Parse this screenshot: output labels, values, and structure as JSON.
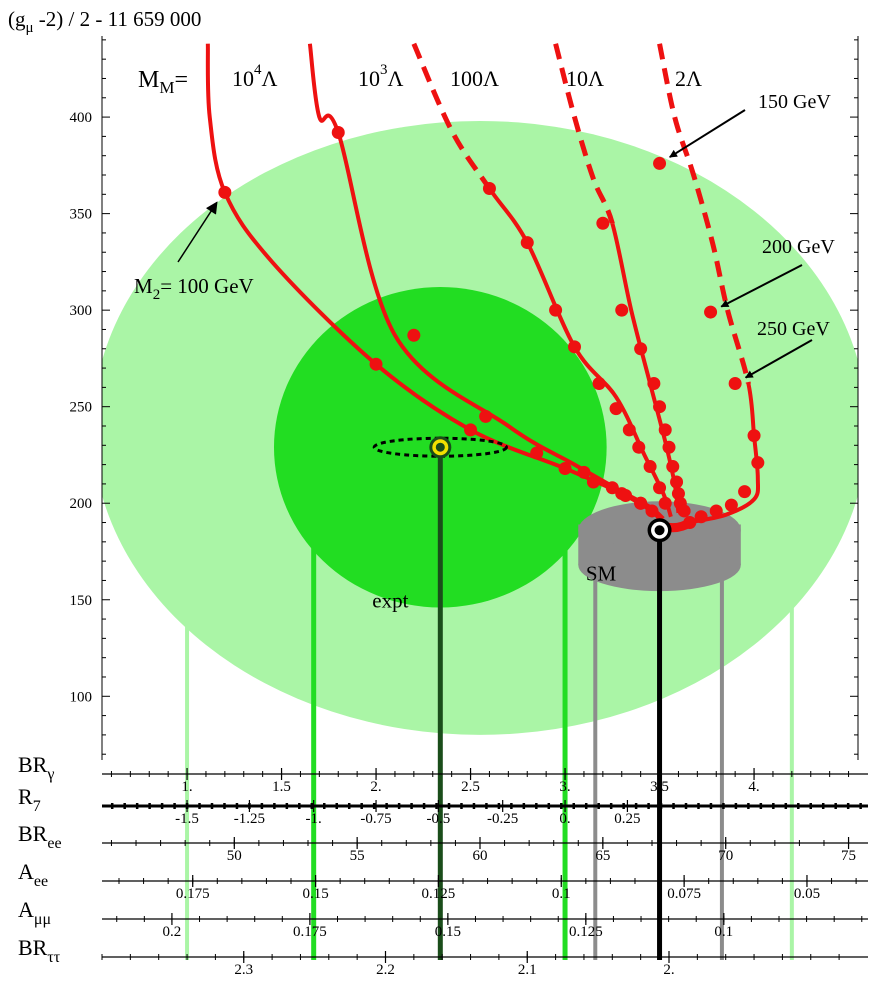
{
  "colors": {
    "outer_region": "#aaf5a6",
    "inner_region": "#22dd22",
    "sm_disc": "#8c8c8c",
    "curves": "#ee1111",
    "sm_line": "#000000",
    "expt_line": "#1a4d1a"
  },
  "chart_data": {
    "type": "line",
    "title": "(gμ -2) / 2  - 11 659 000",
    "title_parts": {
      "base": "(g",
      "sub": "μ",
      "rest": " -2) / 2  - 11 659 000"
    },
    "ylabel": "",
    "y_ticks": [
      100,
      150,
      200,
      250,
      300,
      350,
      400
    ],
    "y_tick_labels": [
      "100",
      "150",
      "200",
      "250",
      "300",
      "350",
      "400"
    ],
    "xlim": [
      0.55,
      4.55
    ],
    "ylim": [
      67,
      442
    ],
    "grid": false,
    "header_label": {
      "base": "M",
      "sub": "M",
      "rest": "= "
    },
    "series": [
      {
        "name": "10⁴Λ",
        "label_base": "10",
        "label_sup": "4",
        "label_rest": "Λ",
        "dashed": false,
        "x": [
          1.11,
          1.12,
          1.2,
          1.45,
          2.0,
          2.5,
          3.0,
          3.3,
          3.47,
          3.5
        ],
        "y": [
          438,
          400,
          361,
          325,
          272,
          238,
          218,
          205,
          195,
          190
        ],
        "markers": [
          [
            1.2,
            361
          ],
          [
            2.0,
            272
          ],
          [
            2.5,
            238
          ],
          [
            3.0,
            218
          ],
          [
            3.15,
            211
          ],
          [
            3.3,
            205
          ],
          [
            3.4,
            200
          ]
        ]
      },
      {
        "name": "10³Λ",
        "label_base": "10",
        "label_sup": "3",
        "label_rest": "Λ",
        "dashed": false,
        "x": [
          1.65,
          1.7,
          1.8,
          2.1,
          2.7,
          3.05,
          3.3,
          3.45,
          3.52
        ],
        "y": [
          438,
          400,
          392,
          287,
          240,
          220,
          206,
          198,
          192
        ],
        "markers": [
          [
            1.8,
            392
          ],
          [
            2.2,
            287
          ],
          [
            2.58,
            245
          ],
          [
            2.85,
            226
          ],
          [
            3.1,
            216
          ],
          [
            3.25,
            208
          ],
          [
            3.32,
            204
          ],
          [
            3.4,
            200
          ],
          [
            3.46,
            196
          ]
        ]
      },
      {
        "name": "100Λ",
        "label_base": "100Λ",
        "label_sup": "",
        "label_rest": "",
        "dashed_above": 363,
        "x": [
          2.2,
          2.4,
          2.6,
          2.8,
          3.05,
          3.27,
          3.42,
          3.52,
          3.56
        ],
        "y": [
          438,
          393,
          363,
          335,
          281,
          255,
          225,
          205,
          193
        ],
        "markers": [
          [
            2.6,
            363
          ],
          [
            2.8,
            335
          ],
          [
            2.95,
            300
          ],
          [
            3.05,
            281
          ],
          [
            3.18,
            262
          ],
          [
            3.27,
            249
          ],
          [
            3.34,
            238
          ],
          [
            3.39,
            229
          ],
          [
            3.45,
            219
          ],
          [
            3.5,
            208
          ],
          [
            3.53,
            200
          ]
        ]
      },
      {
        "name": "10Λ",
        "label_base": "10Λ",
        "label_sup": "",
        "label_rest": "",
        "dashed_above": 345,
        "x": [
          2.95,
          3.05,
          3.15,
          3.25,
          3.35,
          3.45,
          3.53,
          3.58,
          3.6
        ],
        "y": [
          438,
          400,
          368,
          345,
          300,
          262,
          232,
          210,
          195
        ],
        "markers": [
          [
            3.2,
            345
          ],
          [
            3.3,
            300
          ],
          [
            3.4,
            280
          ],
          [
            3.47,
            262
          ],
          [
            3.5,
            250
          ],
          [
            3.53,
            238
          ],
          [
            3.55,
            229
          ],
          [
            3.57,
            219
          ],
          [
            3.59,
            211
          ],
          [
            3.6,
            205
          ],
          [
            3.61,
            200
          ],
          [
            3.63,
            196
          ]
        ]
      },
      {
        "name": "2Λ",
        "label_base": "2Λ",
        "label_sup": "",
        "label_rest": "",
        "dashed_above": 262,
        "x": [
          3.5,
          3.58,
          3.68,
          3.78,
          3.86,
          3.97,
          4.0,
          4.02,
          4.0,
          3.85,
          3.65
        ],
        "y": [
          438,
          400,
          370,
          335,
          300,
          262,
          235,
          213,
          202,
          194,
          190
        ],
        "markers": [
          [
            3.5,
            376
          ],
          [
            3.77,
            299
          ],
          [
            3.9,
            262
          ],
          [
            4.0,
            235
          ],
          [
            4.02,
            221
          ],
          [
            3.95,
            206
          ],
          [
            3.88,
            199
          ],
          [
            3.8,
            196
          ],
          [
            3.72,
            193
          ],
          [
            3.66,
            190
          ]
        ]
      }
    ],
    "annotations": [
      {
        "label": "M",
        "label_sub": "2",
        "label_rest": "= 100 GeV",
        "target": [
          1.2,
          361
        ]
      },
      {
        "label": "150 GeV",
        "target": [
          3.5,
          376
        ]
      },
      {
        "label": "200 GeV",
        "target": [
          3.77,
          299
        ]
      },
      {
        "label": "250 GeV",
        "target": [
          3.9,
          262
        ]
      }
    ],
    "regions": [
      {
        "label": "",
        "kind": "outer",
        "cx": 2.55,
        "cy": 239,
        "rx": 2.05,
        "ry": 159
      },
      {
        "label": "expt",
        "kind": "inner",
        "cx": 2.34,
        "cy": 229,
        "rx": 0.88,
        "ry": 83
      },
      {
        "label": "SM",
        "kind": "sm",
        "cx": 3.5,
        "cy": 186,
        "rx": 0.43,
        "ry": 15
      }
    ],
    "points": [
      {
        "name": "expt",
        "x": 2.34,
        "y": 229
      },
      {
        "name": "SM",
        "x": 3.5,
        "y": 186
      }
    ],
    "vertical_lines": [
      {
        "x": 1.0,
        "color": "outer"
      },
      {
        "x": 1.67,
        "color": "inner"
      },
      {
        "x": 2.34,
        "color": "expt"
      },
      {
        "x": 3.0,
        "color": "inner"
      },
      {
        "x": 3.16,
        "color": "sm"
      },
      {
        "x": 3.5,
        "color": "black"
      },
      {
        "x": 3.83,
        "color": "sm"
      },
      {
        "x": 4.2,
        "color": "outer"
      }
    ],
    "scales": [
      {
        "label": "BR",
        "sub": "γ",
        "ticks": [
          "1.",
          "1.5",
          "2.",
          "2.5",
          "3.",
          "3.5",
          "4."
        ],
        "tick_x": [
          1.0,
          1.5,
          2.0,
          2.5,
          3.0,
          3.5,
          4.0
        ]
      },
      {
        "label": "R",
        "sub": "7",
        "ticks": [
          "-1.5",
          "-1.25",
          "-1.",
          "-0.75",
          "-0.5",
          "-0.25",
          "0.",
          "0.25"
        ],
        "tick_x": [
          1.0,
          1.33,
          1.67,
          2.0,
          2.33,
          2.67,
          3.0,
          3.33
        ]
      },
      {
        "label": "BR",
        "sub": "ee",
        "ticks": [
          "50",
          "55",
          "60",
          "65",
          "70",
          "75"
        ],
        "tick_x": [
          1.25,
          1.9,
          2.55,
          3.2,
          3.85,
          4.5
        ]
      },
      {
        "label": "A",
        "sub": "ee",
        "ticks": [
          "0.175",
          "0.15",
          "0.125",
          "0.1",
          "0.075",
          "0.05"
        ],
        "tick_x": [
          1.03,
          1.68,
          2.33,
          2.98,
          3.63,
          4.28
        ]
      },
      {
        "label": "A",
        "sub": "μμ",
        "ticks": [
          "0.2",
          "0.175",
          "0.15",
          "0.125",
          "0.1"
        ],
        "tick_x": [
          0.92,
          1.65,
          2.38,
          3.11,
          3.84
        ]
      },
      {
        "label": "BR",
        "sub": "ττ",
        "ticks": [
          "2.3",
          "2.2",
          "2.1",
          "2."
        ],
        "tick_x": [
          1.3,
          2.05,
          2.8,
          3.55
        ]
      }
    ]
  }
}
